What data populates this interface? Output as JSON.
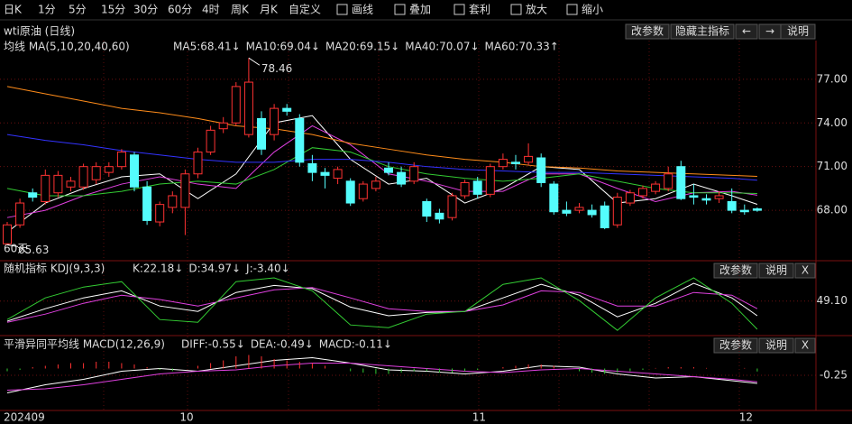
{
  "toolbar": [
    "日K",
    "1分",
    "5分",
    "15分",
    "30分",
    "60分",
    "4时",
    "周K",
    "月K",
    "自定义",
    "画线",
    "叠加",
    "套利",
    "放大",
    "缩小"
  ],
  "instrument": "wti原油 (日线)",
  "main_buttons": [
    "改参数",
    "隐藏主指标",
    "←",
    "→",
    "说明"
  ],
  "chart_data": {
    "type": "candlestick",
    "title": "均线 MA(5,10,20,40,60)",
    "period_label": "60天",
    "open": [
      65.7,
      67.0,
      69.2,
      68.6,
      69.2,
      69.6,
      69.6,
      70.1,
      70.6,
      71.0,
      71.8,
      69.6,
      67.2,
      68.2,
      68.2,
      70.5,
      72.0,
      73.6,
      74.0,
      73.2,
      74.3,
      73.2,
      75.0,
      74.3,
      71.2,
      70.6,
      70.2,
      70.0,
      68.8,
      69.5,
      70.9,
      70.6,
      70.0,
      68.6,
      67.8,
      67.5,
      69.0,
      70.0,
      69.1,
      71.0,
      71.3,
      71.3,
      71.6,
      69.8,
      68.0,
      68.0,
      68.0,
      68.3,
      67.0,
      68.5,
      69.0,
      69.3,
      69.5,
      71.0,
      69.0,
      68.8,
      68.8,
      68.6,
      68.0,
      68.1
    ],
    "high": [
      67.2,
      68.8,
      69.5,
      70.8,
      70.7,
      70.3,
      71.2,
      71.3,
      71.3,
      72.2,
      72.0,
      70.0,
      68.6,
      69.3,
      70.8,
      72.3,
      73.8,
      74.4,
      76.8,
      78.46,
      74.8,
      75.3,
      75.3,
      74.6,
      71.8,
      70.9,
      71.0,
      70.2,
      70.0,
      70.3,
      71.3,
      71.0,
      71.3,
      68.8,
      68.1,
      69.2,
      70.1,
      70.3,
      71.2,
      71.9,
      71.8,
      72.6,
      71.9,
      70.0,
      68.6,
      68.5,
      68.4,
      68.6,
      69.2,
      69.4,
      69.7,
      70.0,
      71.0,
      71.4,
      69.8,
      69.1,
      69.3,
      69.5,
      68.4,
      68.2
    ],
    "low": [
      65.63,
      66.8,
      68.6,
      68.4,
      68.9,
      69.3,
      69.4,
      69.8,
      70.3,
      70.8,
      69.3,
      67.0,
      66.9,
      67.8,
      66.3,
      70.2,
      71.8,
      73.3,
      73.8,
      73.0,
      71.8,
      72.8,
      74.5,
      71.0,
      70.0,
      69.5,
      69.8,
      68.3,
      68.6,
      69.3,
      70.4,
      69.6,
      69.8,
      67.2,
      67.1,
      67.3,
      68.8,
      68.8,
      68.9,
      70.8,
      70.8,
      71.1,
      69.6,
      67.7,
      67.6,
      67.8,
      67.5,
      66.7,
      66.8,
      68.3,
      68.8,
      69.1,
      69.3,
      68.7,
      68.4,
      68.4,
      68.5,
      67.8,
      67.7,
      67.9
    ],
    "close": [
      67.0,
      68.5,
      68.9,
      70.4,
      70.4,
      70.0,
      71.0,
      71.0,
      71.0,
      72.0,
      69.6,
      67.3,
      68.4,
      69.0,
      70.5,
      72.0,
      73.5,
      74.0,
      76.5,
      76.8,
      72.2,
      75.0,
      74.8,
      71.3,
      70.6,
      70.4,
      70.8,
      68.5,
      69.8,
      70.0,
      70.6,
      69.8,
      71.0,
      67.6,
      67.4,
      69.0,
      69.9,
      69.1,
      71.0,
      71.5,
      71.2,
      71.7,
      69.9,
      67.9,
      67.8,
      68.2,
      67.7,
      66.8,
      68.9,
      69.2,
      69.5,
      69.8,
      70.5,
      68.8,
      68.9,
      68.7,
      69.0,
      68.0,
      67.9,
      68.0
    ],
    "up_color": "#ff3232",
    "down_color": "#54fcfc",
    "ma_x": [
      0,
      3,
      6,
      9,
      12,
      15,
      18,
      21,
      24,
      27,
      30,
      33,
      36,
      39,
      42,
      45,
      48,
      51,
      54,
      57,
      59
    ],
    "series": [
      {
        "name": "MA5:68.41↓",
        "color": "#ffffff",
        "values": [
          66.5,
          68.5,
          69.5,
          70.3,
          70.5,
          68.8,
          70.5,
          74,
          74.5,
          71.5,
          69.8,
          70.2,
          68.5,
          69.5,
          71,
          70.8,
          68.5,
          68.8,
          69.8,
          69,
          68.41
        ]
      },
      {
        "name": "MA10:69.04↓",
        "color": "#e040e0",
        "values": [
          67.5,
          68,
          69,
          69.8,
          70.3,
          69.8,
          69.5,
          72,
          73.8,
          72.5,
          70.5,
          70,
          69.3,
          69.3,
          70.5,
          70.5,
          69.5,
          68.6,
          69.2,
          69.3,
          69.04
        ]
      },
      {
        "name": "MA20:69.15↓",
        "color": "#33cc33",
        "values": [
          69.5,
          69,
          69,
          69.3,
          69.8,
          70,
          69.8,
          70.8,
          72.3,
          72,
          71,
          70.5,
          70.2,
          70,
          70.2,
          70.5,
          70,
          69.5,
          69.2,
          69.2,
          69.15
        ]
      },
      {
        "name": "MA40:70.07↓",
        "color": "#3333ff",
        "values": [
          73.2,
          72.8,
          72.5,
          72.1,
          71.8,
          71.5,
          71.3,
          71.3,
          71.5,
          71.5,
          71.3,
          71,
          70.8,
          70.7,
          70.6,
          70.6,
          70.5,
          70.4,
          70.3,
          70.2,
          70.07
        ]
      },
      {
        "name": "MA60:70.33↑",
        "color": "#ff8c1a",
        "values": [
          76.5,
          76,
          75.5,
          75,
          74.7,
          74.3,
          73.8,
          73.6,
          73.2,
          72.6,
          72.2,
          71.8,
          71.5,
          71.3,
          71,
          70.9,
          70.7,
          70.6,
          70.5,
          70.4,
          70.33
        ]
      }
    ],
    "ylim": [
      64.6,
      78.6
    ],
    "yticks": [
      {
        "value": 68,
        "label": "68.00"
      },
      {
        "value": 71,
        "label": "71.00"
      },
      {
        "value": 74,
        "label": "74.00"
      },
      {
        "value": 77,
        "label": "77.00"
      }
    ],
    "annotations": [
      {
        "index": 19,
        "value": 78.46
      },
      {
        "index": 0,
        "value": 65.63
      }
    ],
    "xlabels": [
      {
        "index": 0,
        "label": "202409"
      },
      {
        "index": 14,
        "label": "10"
      },
      {
        "index": 37,
        "label": "11"
      },
      {
        "index": 58,
        "label": "12"
      }
    ]
  },
  "kdj": {
    "title": "随机指标 KDJ(9,3,3)",
    "buttons": [
      "改参数",
      "说明",
      "X"
    ],
    "x": [
      0,
      3,
      6,
      9,
      12,
      15,
      18,
      21,
      24,
      27,
      30,
      33,
      36,
      39,
      42,
      45,
      48,
      51,
      54,
      57,
      59
    ],
    "series": [
      {
        "name": "K:22.18↓",
        "color": "#ffffff",
        "values": [
          12,
          35,
          55,
          68,
          40,
          30,
          65,
          78,
          72,
          38,
          22,
          28,
          30,
          55,
          80,
          60,
          20,
          45,
          82,
          55,
          22
        ]
      },
      {
        "name": "D:34.97↓",
        "color": "#e040e0",
        "values": [
          10,
          25,
          45,
          60,
          52,
          40,
          55,
          70,
          74,
          55,
          35,
          30,
          30,
          42,
          68,
          65,
          40,
          40,
          65,
          60,
          35
        ]
      },
      {
        "name": "J:-3.40↓",
        "color": "#33cc33",
        "values": [
          15,
          55,
          75,
          85,
          15,
          10,
          85,
          92,
          68,
          5,
          0,
          25,
          30,
          80,
          92,
          50,
          -5,
          55,
          92,
          45,
          -3
        ]
      }
    ],
    "ylim": [
      -8,
      92
    ],
    "yticks": [
      {
        "value": 49.1,
        "label": "49.10"
      }
    ]
  },
  "macd": {
    "title": "平滑异同平均线 MACD(12,26,9)",
    "buttons": [
      "改参数",
      "说明",
      "X"
    ],
    "x": [
      0,
      3,
      6,
      9,
      12,
      15,
      18,
      21,
      24,
      27,
      30,
      33,
      36,
      39,
      42,
      45,
      48,
      51,
      54,
      57,
      59
    ],
    "series": [
      {
        "name": "DIFF:-0.55↓",
        "color": "#ffffff",
        "values": [
          -0.9,
          -0.6,
          -0.4,
          -0.1,
          0,
          -0.1,
          0.1,
          0.3,
          0.4,
          0.2,
          -0.05,
          -0.1,
          -0.2,
          -0.1,
          0.1,
          0.05,
          -0.2,
          -0.35,
          -0.3,
          -0.45,
          -0.55
        ]
      },
      {
        "name": "DEA:-0.49↓",
        "color": "#e040e0",
        "values": [
          -0.8,
          -0.75,
          -0.6,
          -0.4,
          -0.2,
          -0.1,
          -0.05,
          0.1,
          0.2,
          0.2,
          0.1,
          0,
          -0.1,
          -0.15,
          -0.05,
          0,
          -0.1,
          -0.2,
          -0.3,
          -0.4,
          -0.49
        ]
      }
    ],
    "histogram_name": "MACD:-0.11↓",
    "histogram": [
      -0.1,
      -0.05,
      0.05,
      0.1,
      0.15,
      0.2,
      0.2,
      0.25,
      0.25,
      0.2,
      0.15,
      0.05,
      -0.05,
      -0.1,
      0,
      0.1,
      0.2,
      0.3,
      0.45,
      0.5,
      0.45,
      0.35,
      0.3,
      0.25,
      0.2,
      0.1,
      0,
      -0.1,
      -0.15,
      -0.2,
      -0.2,
      -0.15,
      -0.1,
      -0.1,
      -0.15,
      -0.15,
      -0.1,
      -0.05,
      0,
      0.05,
      0.1,
      0.15,
      0.15,
      0.1,
      0,
      -0.1,
      -0.15,
      -0.2,
      -0.15,
      -0.1,
      -0.05,
      0.02,
      0.05,
      0.05,
      0.05,
      0.02,
      0,
      0,
      0.02,
      -0.11
    ],
    "ylim": [
      -1.45,
      0.55
    ],
    "yticks": [
      -0.25
    ]
  }
}
